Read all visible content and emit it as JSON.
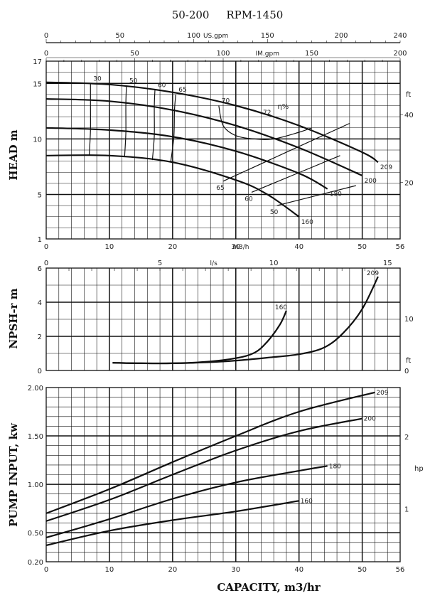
{
  "chart_data": [
    {
      "type": "line",
      "title": "50-200     RPM-1450",
      "ylabel": "HEAD m",
      "xlabel": "m3/h",
      "xlim": [
        0,
        56
      ],
      "ylim": [
        1,
        17
      ],
      "x_ticks": [
        0,
        10,
        20,
        30,
        40,
        50,
        56
      ],
      "y_ticks": [
        1,
        5,
        10,
        15,
        17
      ],
      "top_axes": [
        {
          "label": "US.gpm",
          "ticks": [
            0,
            50,
            100,
            150,
            200,
            240
          ],
          "max": 240
        },
        {
          "label": "IM.gpm",
          "ticks": [
            0,
            50,
            100,
            150,
            200
          ],
          "max": 200
        }
      ],
      "right_axis": {
        "label": "ft",
        "ticks": [
          20,
          40
        ]
      },
      "series": [
        {
          "name": "209",
          "x": [
            0,
            10,
            20,
            30,
            40,
            50,
            52.5
          ],
          "y": [
            15.1,
            14.9,
            14.2,
            13.0,
            11.2,
            8.8,
            7.9
          ]
        },
        {
          "name": "200",
          "x": [
            0,
            10,
            20,
            30,
            40,
            50
          ],
          "y": [
            13.6,
            13.4,
            12.6,
            11.2,
            9.2,
            6.7
          ]
        },
        {
          "name": "180",
          "x": [
            0,
            10,
            20,
            30,
            40,
            44.5
          ],
          "y": [
            11.0,
            10.8,
            10.2,
            8.9,
            6.9,
            5.5
          ]
        },
        {
          "name": "160",
          "x": [
            0,
            10,
            20,
            30,
            35,
            40
          ],
          "y": [
            8.5,
            8.5,
            7.9,
            6.3,
            5.0,
            3.0
          ]
        }
      ],
      "efficiency_curves": [
        {
          "label": "30",
          "x": [
            7.0,
            7.0,
            7.0,
            6.8
          ],
          "y": [
            15.0,
            13.4,
            10.8,
            8.5
          ]
        },
        {
          "label": "50",
          "x": [
            12.7,
            12.6,
            12.6,
            12.4
          ],
          "y": [
            14.8,
            13.2,
            10.6,
            8.4
          ]
        },
        {
          "label": "60",
          "x": [
            17.2,
            17.1,
            17.1,
            16.8
          ],
          "y": [
            14.4,
            12.9,
            10.3,
            8.1
          ]
        },
        {
          "label": "65",
          "x": [
            20.5,
            20.3,
            20.2,
            19.7
          ],
          "y": [
            14.0,
            12.6,
            10.2,
            7.9
          ]
        },
        {
          "label": "70",
          "x": [
            27.3,
            28,
            30,
            33,
            36,
            40,
            42
          ],
          "y": [
            13.0,
            11.2,
            10.3,
            10.0,
            10.0,
            10.6,
            11.0
          ]
        },
        {
          "label": "65",
          "x": [
            28,
            48
          ],
          "y": [
            6.2,
            11.4
          ]
        },
        {
          "label": "60",
          "x": [
            32.5,
            46.5
          ],
          "y": [
            5.2,
            8.5
          ]
        },
        {
          "label": "50",
          "x": [
            36.5,
            49.0
          ],
          "y": [
            4.0,
            5.8
          ]
        }
      ],
      "efficiency_note": "72 η%",
      "annotations": [
        "30",
        "50",
        "60",
        "65",
        "70",
        "72",
        "η%",
        "65",
        "60",
        "50"
      ]
    },
    {
      "type": "line",
      "ylabel": "NPSH-r m",
      "xlabel": "l/s",
      "xlim": [
        0,
        56
      ],
      "ylim": [
        0,
        6
      ],
      "x_ticks_ls": [
        0,
        5,
        10,
        15
      ],
      "y_ticks": [
        0,
        2,
        4,
        6
      ],
      "right_axis": {
        "label": "ft",
        "ticks": [
          0,
          10
        ]
      },
      "series": [
        {
          "name": "160",
          "x": [
            10.5,
            15,
            20,
            25,
            30,
            33,
            35,
            37,
            38
          ],
          "y": [
            0.45,
            0.42,
            0.42,
            0.5,
            0.72,
            1.05,
            1.7,
            2.7,
            3.5
          ]
        },
        {
          "name": "209",
          "x": [
            10.5,
            15,
            20,
            25,
            30,
            35,
            40,
            44,
            47,
            50,
            52.5
          ],
          "y": [
            0.45,
            0.42,
            0.42,
            0.47,
            0.58,
            0.75,
            0.95,
            1.35,
            2.2,
            3.6,
            5.5
          ]
        }
      ]
    },
    {
      "type": "line",
      "ylabel": "PUMP INPUT, kw",
      "xlabel": "CAPACITY, m3/hr",
      "xlim": [
        0,
        56
      ],
      "ylim": [
        0.2,
        2.0
      ],
      "x_ticks": [
        0,
        10,
        20,
        30,
        40,
        50,
        56
      ],
      "y_ticks": [
        0.2,
        0.5,
        1.0,
        1.5,
        2.0
      ],
      "y_tick_labels": [
        "0.20",
        "0.50",
        "1.00",
        "1.50",
        "2.00"
      ],
      "right_axis": {
        "label": "hp",
        "ticks": [
          1,
          2
        ]
      },
      "series": [
        {
          "name": "209",
          "x": [
            0,
            10,
            20,
            30,
            40,
            52
          ],
          "y": [
            0.7,
            0.95,
            1.23,
            1.5,
            1.75,
            1.95
          ]
        },
        {
          "name": "200",
          "x": [
            0,
            10,
            20,
            30,
            40,
            50
          ],
          "y": [
            0.62,
            0.84,
            1.1,
            1.35,
            1.55,
            1.68
          ]
        },
        {
          "name": "180",
          "x": [
            0,
            10,
            20,
            30,
            40,
            44.5
          ],
          "y": [
            0.45,
            0.64,
            0.85,
            1.02,
            1.14,
            1.19
          ]
        },
        {
          "name": "160",
          "x": [
            0,
            10,
            20,
            30,
            40
          ],
          "y": [
            0.37,
            0.52,
            0.63,
            0.72,
            0.83
          ]
        }
      ]
    }
  ]
}
